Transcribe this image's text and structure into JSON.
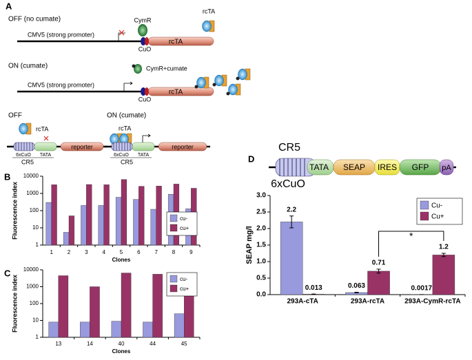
{
  "panel_labels": [
    "A",
    "B",
    "C",
    "D"
  ],
  "diagram_a": {
    "off_title": "OFF (no cumate)",
    "off_promoter": "CMV5 (strong promoter)",
    "off_cymr": "CymR",
    "off_cuo": "CuO",
    "off_gene": "rcTA",
    "off_free_rcta": "rcTA",
    "on_title": "ON (cumate)",
    "on_cymr": "CymR+cumate",
    "on_promoter": "CMV5 (strong promoter)",
    "on_cuo": "CuO",
    "on_gene": "rcTA",
    "sw_off_title": "OFF",
    "sw_off_rcta": "rcTA",
    "sw_off_operator": "6xCuO",
    "sw_off_tata": "TATA",
    "sw_off_cr5": "CR5",
    "sw_off_reporter": "reporter",
    "sw_on_title": "ON (cumate)",
    "sw_on_rcta": "rcTA",
    "sw_on_operator": "6xCuO",
    "sw_on_tata": "TATA",
    "sw_on_cr5": "CR5",
    "sw_on_reporter": "reporter"
  },
  "diagram_d": {
    "cr5": "CR5",
    "tata": "TATA",
    "seap": "SEAP",
    "ires": "IRES",
    "gfp": "GFP",
    "pa": "pA",
    "operator": "6xCuO"
  },
  "chart_data": [
    {
      "type": "bar",
      "x_label": "Clones",
      "y_label": "Fluorescence index",
      "categories": [
        "1",
        "2",
        "3",
        "4",
        "5",
        "6",
        "7",
        "8",
        "9"
      ],
      "series": [
        {
          "name": "cu-",
          "color": "#9999dd",
          "values": [
            300,
            5.5,
            200,
            200,
            600,
            450,
            120,
            900,
            130
          ]
        },
        {
          "name": "cu+",
          "color": "#993366",
          "values": [
            3200,
            50,
            3300,
            3200,
            6500,
            2600,
            2700,
            3500,
            2000
          ]
        }
      ],
      "log_scale": true,
      "ylim": [
        1,
        10000
      ],
      "yticks": [
        1,
        10,
        100,
        1000,
        10000
      ],
      "grid": false,
      "legend": "center right"
    },
    {
      "type": "bar",
      "x_label": "Clones",
      "y_label": "Fluorescence index",
      "categories": [
        "13",
        "14",
        "40",
        "44",
        "45"
      ],
      "series": [
        {
          "name": "cu-",
          "color": "#9999dd",
          "values": [
            8,
            8,
            9,
            8,
            25
          ]
        },
        {
          "name": "cu+",
          "color": "#993366",
          "values": [
            4500,
            1000,
            6500,
            5500,
            3500
          ]
        }
      ],
      "log_scale": true,
      "ylim": [
        1,
        10000
      ],
      "yticks": [
        1,
        10,
        100,
        1000,
        10000
      ],
      "grid": false,
      "legend": "upper right"
    },
    {
      "type": "bar",
      "y_label": "SEAP mg/l",
      "categories": [
        "293A-cTA",
        "293A-rcTA",
        "293A-CymR-rcTA"
      ],
      "series": [
        {
          "name": "Cu-",
          "color": "#9999dd",
          "values": [
            2.2,
            0.063,
            0.0017
          ],
          "errors": [
            0.18,
            0.01,
            0
          ]
        },
        {
          "name": "Cu+",
          "color": "#993366",
          "values": [
            0.013,
            0.71,
            1.2
          ],
          "errors": [
            0.005,
            0.06,
            0.05
          ]
        }
      ],
      "log_scale": false,
      "ylim": [
        0,
        3
      ],
      "yticks": [
        {
          "value": 0,
          "label": "0.0"
        },
        0.5,
        {
          "value": 1,
          "label": "1.0"
        },
        1.5,
        {
          "value": 2,
          "label": "2.0"
        },
        2.5,
        {
          "value": 3,
          "label": "3.0"
        }
      ],
      "grid": false,
      "legend": "upper right",
      "show_value_labels": true,
      "annotation": "*"
    }
  ]
}
